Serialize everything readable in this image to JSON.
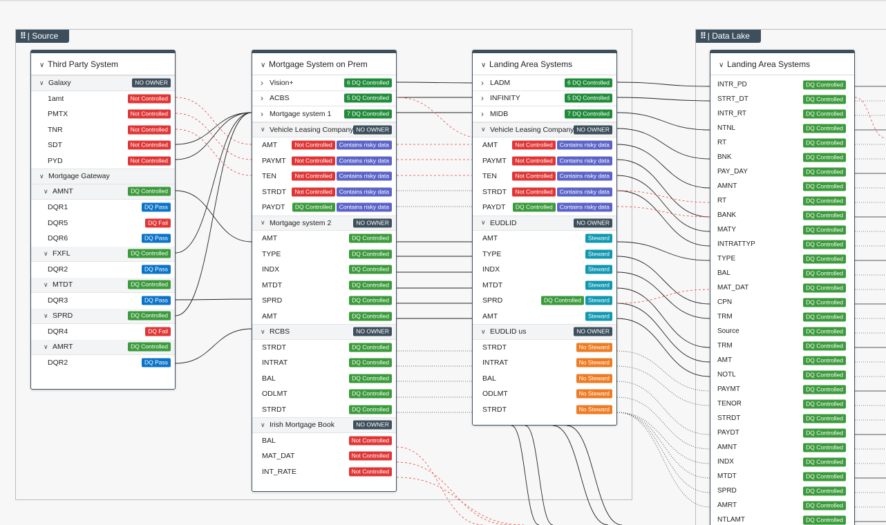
{
  "groups": {
    "source": "Source",
    "data_lake": "Data Lake"
  },
  "third_party": {
    "title": "Third Party System",
    "galaxy": {
      "label": "Galaxy",
      "badge": "NO OWNER"
    },
    "galaxy_items": [
      {
        "label": "1amt",
        "badge": "Not Controlled"
      },
      {
        "label": "PMTX",
        "badge": "Not Controlled"
      },
      {
        "label": "TNR",
        "badge": "Not Controlled"
      },
      {
        "label": "SDT",
        "badge": "Not Controlled"
      },
      {
        "label": "PYD",
        "badge": "Not Controlled"
      }
    ],
    "gateway": {
      "label": "Mortgage Gateway"
    },
    "amnt": {
      "label": "AMNT",
      "badge": "DQ Controlled"
    },
    "amnt_items": [
      {
        "label": "DQR1",
        "badge": "DQ Pass"
      },
      {
        "label": "DQR5",
        "badge": "DQ Fail"
      },
      {
        "label": "DQR6",
        "badge": "DQ Pass"
      }
    ],
    "fxfl": {
      "label": "FXFL",
      "badge": "DQ Controlled"
    },
    "fxfl_items": [
      {
        "label": "DQR2",
        "badge": "DQ Pass"
      }
    ],
    "mtdt": {
      "label": "MTDT",
      "badge": "DQ Controlled"
    },
    "mtdt_items": [
      {
        "label": "DQR3",
        "badge": "DQ Pass"
      }
    ],
    "sprd": {
      "label": "SPRD",
      "badge": "DQ Controlled"
    },
    "sprd_items": [
      {
        "label": "DQR4",
        "badge": "DQ Fail"
      }
    ],
    "amrt": {
      "label": "AMRT",
      "badge": "DQ Controlled"
    },
    "amrt_items": [
      {
        "label": "DQR2",
        "badge": "DQ Pass"
      }
    ]
  },
  "mortgage_prem": {
    "title": "Mortgage System on Prem",
    "collapsed": [
      {
        "label": "Vision+",
        "badge": "6  DQ Controlled"
      },
      {
        "label": "ACBS",
        "badge": "5  DQ Controlled"
      },
      {
        "label": "Mortgage system 1",
        "badge": "7  DQ Controlled"
      }
    ],
    "vlc": {
      "label": "Vehicle Leasing Company",
      "badge": "NO OWNER"
    },
    "vlc_items": [
      {
        "label": "AMT",
        "b1": "Not Controlled",
        "b2": "Contains risky data"
      },
      {
        "label": "PAYMT",
        "b1": "Not Controlled",
        "b2": "Contains risky data"
      },
      {
        "label": "TEN",
        "b1": "Not Controlled",
        "b2": "Contains risky data"
      },
      {
        "label": "STRDT",
        "b1": "Not Controlled",
        "b2": "Contains risky data"
      },
      {
        "label": "PAYDT",
        "b1": "DQ Controlled",
        "b2": "Contains risky data"
      }
    ],
    "ms2": {
      "label": "Mortgage system 2",
      "badge": "NO OWNER"
    },
    "ms2_items": [
      {
        "label": "AMT",
        "badge": "DQ Controlled"
      },
      {
        "label": "TYPE",
        "badge": "DQ Controlled"
      },
      {
        "label": "INDX",
        "badge": "DQ Controlled"
      },
      {
        "label": "MTDT",
        "badge": "DQ Controlled"
      },
      {
        "label": "SPRD",
        "badge": "DQ Controlled"
      },
      {
        "label": "AMT",
        "badge": "DQ Controlled"
      }
    ],
    "rcbs": {
      "label": "RCBS",
      "badge": "NO OWNER"
    },
    "rcbs_items": [
      {
        "label": "STRDT",
        "badge": "DQ Controlled"
      },
      {
        "label": "INTRAT",
        "badge": "DQ Controlled"
      },
      {
        "label": "BAL",
        "badge": "DQ Controlled"
      },
      {
        "label": "ODLMT",
        "badge": "DQ Controlled"
      },
      {
        "label": "STRDT",
        "badge": "DQ Controlled"
      }
    ],
    "irish": {
      "label": "Irish Mortgage Book",
      "badge": "NO OWNER"
    },
    "irish_items": [
      {
        "label": "BAL",
        "badge": "Not Controlled"
      },
      {
        "label": "MAT_DAT",
        "badge": "Not Controlled"
      },
      {
        "label": "INT_RATE",
        "badge": "Not Controlled"
      }
    ]
  },
  "landing": {
    "title": "Landing Area Systems",
    "collapsed": [
      {
        "label": "LADM",
        "badge": "6  DQ Controlled"
      },
      {
        "label": "INFINITY",
        "badge": "5  DQ Controlled"
      },
      {
        "label": "MIDB",
        "badge": "7  DQ Controlled"
      }
    ],
    "vlc": {
      "label": "Vehicle Leasing Company",
      "badge": "NO OWNER"
    },
    "vlc_items": [
      {
        "label": "AMT",
        "b1": "Not Controlled",
        "b2": "Contains risky data"
      },
      {
        "label": "PAYMT",
        "b1": "Not Controlled",
        "b2": "Contains risky data"
      },
      {
        "label": "TEN",
        "b1": "Not Controlled",
        "b2": "Contains risky data"
      },
      {
        "label": "STRDT",
        "b1": "Not Controlled",
        "b2": "Contains risky data"
      },
      {
        "label": "PAYDT",
        "b1": "DQ Controlled",
        "b2": "Contains risky data"
      }
    ],
    "eudlid": {
      "label": "EUDLID",
      "badge": "NO OWNER"
    },
    "eudlid_items": [
      {
        "label": "AMT",
        "b2": "Steward"
      },
      {
        "label": "TYPE",
        "b2": "Steward"
      },
      {
        "label": "INDX",
        "b2": "Steward"
      },
      {
        "label": "MTDT",
        "b2": "Steward"
      },
      {
        "label": "SPRD",
        "b1": "DQ Controlled",
        "b2": "Steward"
      },
      {
        "label": "AMT",
        "b2": "Steward"
      }
    ],
    "eudlid_us": {
      "label": "EUDLID us",
      "badge": "NO OWNER"
    },
    "eudlid_us_items": [
      {
        "label": "STRDT",
        "badge": "No Steward"
      },
      {
        "label": "INTRAT",
        "badge": "No Steward"
      },
      {
        "label": "BAL",
        "badge": "No Steward"
      },
      {
        "label": "ODLMT",
        "badge": "No Steward"
      },
      {
        "label": "STRDT",
        "badge": "No Steward"
      }
    ]
  },
  "lake": {
    "title": "Landing Area Systems",
    "items": [
      {
        "label": "INTR_PD",
        "badge": "DQ Controlled"
      },
      {
        "label": "STRT_DT",
        "badge": "DQ Controlled"
      },
      {
        "label": "INTR_RT",
        "badge": "DQ Controlled"
      },
      {
        "label": "NTNL",
        "badge": "DQ Controlled"
      },
      {
        "label": "RT",
        "badge": "DQ Controlled"
      },
      {
        "label": "BNK",
        "badge": "DQ Controlled"
      },
      {
        "label": "PAY_DAY",
        "badge": "DQ Controlled"
      },
      {
        "label": "AMNT",
        "badge": "DQ Controlled"
      },
      {
        "label": "RT",
        "badge": "DQ Controlled"
      },
      {
        "label": "BANK",
        "badge": "DQ Controlled"
      },
      {
        "label": "MATY",
        "badge": "DQ Controlled"
      },
      {
        "label": "INTRATTYP",
        "badge": "DQ Controlled"
      },
      {
        "label": "TYPE",
        "badge": "DQ Controlled"
      },
      {
        "label": "BAL",
        "badge": "DQ Controlled"
      },
      {
        "label": "MAT_DAT",
        "badge": "DQ Controlled"
      },
      {
        "label": "CPN",
        "badge": "DQ Controlled"
      },
      {
        "label": "TRM",
        "badge": "DQ Controlled"
      },
      {
        "label": "Source",
        "badge": "DQ Controlled"
      },
      {
        "label": "TRM",
        "badge": "DQ Controlled"
      },
      {
        "label": "AMT",
        "badge": "DQ Controlled"
      },
      {
        "label": "NOTL",
        "badge": "DQ Controlled"
      },
      {
        "label": "PAYMT",
        "badge": "DQ Controlled"
      },
      {
        "label": "TENOR",
        "badge": "DQ Controlled"
      },
      {
        "label": "STRDT",
        "badge": "DQ Controlled"
      },
      {
        "label": "PAYDT",
        "badge": "DQ Controlled"
      },
      {
        "label": "AMNT",
        "badge": "DQ Controlled"
      },
      {
        "label": "INDX",
        "badge": "DQ Controlled"
      },
      {
        "label": "MTDT",
        "badge": "DQ Controlled"
      },
      {
        "label": "SPRD",
        "badge": "DQ Controlled"
      },
      {
        "label": "AMRT",
        "badge": "DQ Controlled"
      },
      {
        "label": "NTLAMT",
        "badge": "DQ Controlled"
      }
    ]
  }
}
